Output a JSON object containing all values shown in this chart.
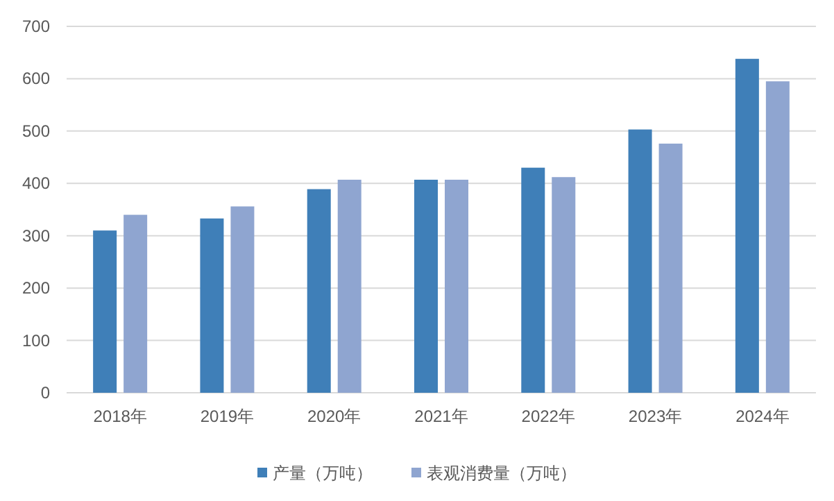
{
  "chart_data": {
    "type": "bar",
    "categories": [
      "2018年",
      "2019年",
      "2020年",
      "2021年",
      "2022年",
      "2023年",
      "2024年"
    ],
    "series": [
      {
        "name": "产量（万吨）",
        "color": "#3f7fb8",
        "values": [
          310,
          333,
          389,
          407,
          430,
          503,
          638
        ]
      },
      {
        "name": "表观消费量（万吨）",
        "color": "#8fa5d0",
        "values": [
          340,
          356,
          407,
          407,
          412,
          476,
          595
        ]
      }
    ],
    "ylim": [
      0,
      700
    ],
    "yticks": [
      0,
      100,
      200,
      300,
      400,
      500,
      600,
      700
    ],
    "grid": "y",
    "legend": "bottom"
  }
}
